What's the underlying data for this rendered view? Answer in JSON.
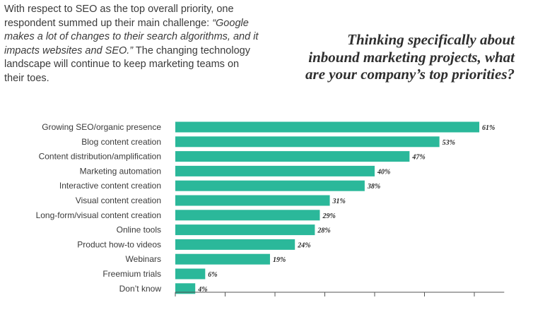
{
  "intro": {
    "lead": "With respect to SEO as the top overall priority, one respondent summed up their main challenge: ",
    "quote": "“Google makes a lot of changes to their search algorithms, and it impacts websites and SEO.”",
    "tail": " The changing technology landscape will continue to keep marketing teams on their toes."
  },
  "question": "Thinking specifically about inbound marketing projects, what are your company’s top priorities?",
  "colors": {
    "bar": "#2bb89a",
    "axis": "#555555",
    "text": "#3a3a3a"
  },
  "chart_data": {
    "type": "bar",
    "orientation": "horizontal",
    "categories": [
      "Growing SEO/organic presence",
      "Blog content creation",
      "Content distribution/amplification",
      "Marketing automation",
      "Interactive content creation",
      "Visual content creation",
      "Long-form/visual content creation",
      "Online tools",
      "Product how-to videos",
      "Webinars",
      "Freemium trials",
      "Don’t know"
    ],
    "values": [
      61,
      53,
      47,
      40,
      38,
      31,
      29,
      28,
      24,
      19,
      6,
      4
    ],
    "data_labels": [
      "61%",
      "53%",
      "47%",
      "40%",
      "38%",
      "31%",
      "29%",
      "28%",
      "24%",
      "19%",
      "6%",
      "4%"
    ],
    "xlim": [
      0,
      65
    ],
    "xticks": [
      0,
      10,
      20,
      30,
      40,
      50,
      60
    ],
    "grid": false,
    "legend": "none"
  }
}
